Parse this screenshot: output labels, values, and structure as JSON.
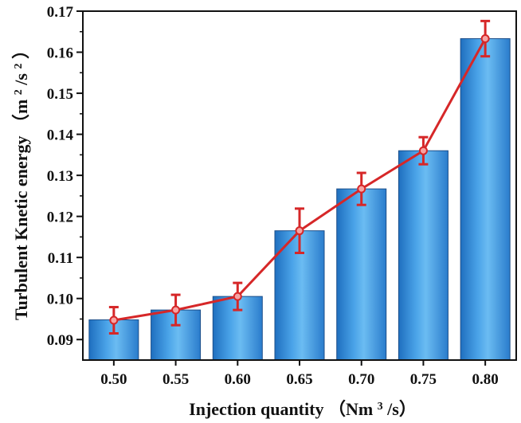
{
  "chart_data": {
    "type": "bar",
    "title": "",
    "categories": [
      "0.50",
      "0.55",
      "0.60",
      "0.65",
      "0.70",
      "0.75",
      "0.80"
    ],
    "series": [
      {
        "name": "Turbulent Knetic energy (bar)",
        "type": "bar",
        "values": [
          0.0948,
          0.0972,
          0.1005,
          0.1165,
          0.1267,
          0.136,
          0.1633
        ],
        "color": "#3d8fd6"
      },
      {
        "name": "Turbulent Knetic energy (line)",
        "type": "line",
        "values": [
          0.0947,
          0.0972,
          0.1005,
          0.1165,
          0.1267,
          0.136,
          0.1633
        ],
        "error": [
          0.0032,
          0.0037,
          0.0033,
          0.0054,
          0.0039,
          0.0033,
          0.0043
        ],
        "color": "#d62728"
      }
    ],
    "xlabel_parts": [
      "Injection quantity",
      "（Nm",
      "3",
      "/s）"
    ],
    "ylabel_parts": [
      "Turbulent Knetic energy",
      "（m",
      "2",
      "/s",
      "2",
      "）"
    ],
    "ylim": [
      0.085,
      0.17
    ],
    "yticks": [
      "0.09",
      "0.10",
      "0.11",
      "0.12",
      "0.13",
      "0.14",
      "0.15",
      "0.16",
      "0.17"
    ],
    "grid": false
  }
}
